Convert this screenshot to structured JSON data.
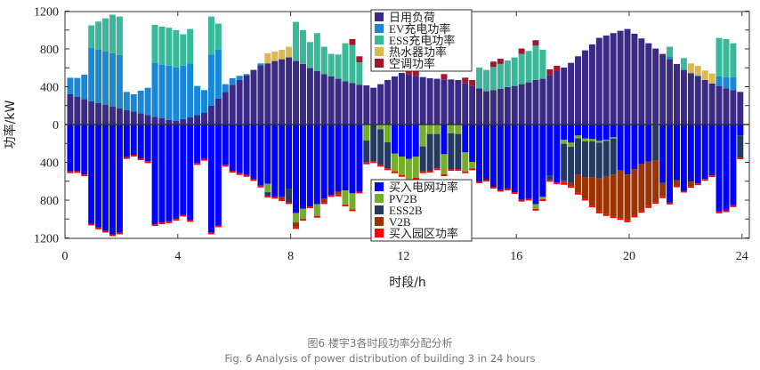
{
  "chart_data": {
    "type": "bar",
    "stacked": true,
    "xlabel": "时段/h",
    "ylabel": "功率/kW",
    "xlim": [
      0,
      24
    ],
    "ylim": [
      -1200,
      1200
    ],
    "x_ticks": [
      "0",
      "4",
      "8",
      "12",
      "16",
      "20",
      "24"
    ],
    "y_ticks": [
      "1200",
      "800",
      "400",
      "0",
      "400",
      "800",
      "1200"
    ],
    "grid": false,
    "interval_hours": 0.25,
    "legend_positive": "top-center",
    "legend_negative": "bottom-center",
    "positive_series": [
      {
        "name": "日用负荷",
        "color": "#3a2a84",
        "values": [
          320,
          295,
          270,
          245,
          226,
          207,
          188,
          170,
          151,
          138,
          119,
          100,
          82,
          69,
          50,
          38,
          57,
          75,
          100,
          126,
          201,
          276,
          345,
          421,
          471,
          521,
          578,
          628,
          647,
          672,
          691,
          710,
          672,
          641,
          597,
          565,
          534,
          509,
          484,
          458,
          440,
          421,
          414,
          389,
          427,
          471,
          509,
          546,
          528,
          515,
          502,
          490,
          484,
          477,
          477,
          471,
          440,
          408,
          383,
          352,
          364,
          377,
          396,
          408,
          427,
          446,
          471,
          484,
          521,
          565,
          603,
          653,
          722,
          785,
          848,
          917,
          942,
          967,
          992,
          1011,
          961,
          911,
          860,
          804,
          747,
          691,
          641,
          578,
          540,
          509,
          471,
          433,
          408,
          383,
          364,
          345
        ]
      },
      {
        "name": "EV充电功率",
        "color": "#1a86d6",
        "values": [
          175,
          198,
          258,
          565,
          565,
          565,
          566,
          565,
          194,
          182,
          239,
          289,
          571,
          565,
          572,
          565,
          565,
          572,
          308,
          238,
          540,
          515,
          82,
          69,
          44,
          13,
          0,
          19,
          0,
          0,
          0,
          0,
          0,
          0,
          0,
          0,
          0,
          0,
          0,
          0,
          0,
          0,
          0,
          0,
          0,
          0,
          0,
          0,
          0,
          0,
          0,
          0,
          0,
          0,
          0,
          0,
          0,
          0,
          0,
          0,
          0,
          0,
          0,
          0,
          0,
          0,
          0,
          0,
          0,
          0,
          0,
          0,
          0,
          0,
          0,
          0,
          0,
          0,
          0,
          0,
          0,
          0,
          0,
          0,
          0,
          31,
          0,
          0,
          6,
          12,
          0,
          0,
          101,
          119,
          138,
          0
        ]
      },
      {
        "name": "ESS充电功率",
        "color": "#3ab99a",
        "values": [
          0,
          0,
          0,
          239,
          299,
          352,
          408,
          408,
          0,
          0,
          0,
          0,
          402,
          402,
          402,
          396,
          333,
          364,
          0,
          0,
          402,
          277,
          0,
          0,
          0,
          0,
          0,
          0,
          0,
          0,
          0,
          0,
          414,
          358,
          276,
          402,
          289,
          238,
          257,
          402,
          402,
          238,
          0,
          0,
          0,
          0,
          0,
          0,
          0,
          0,
          0,
          0,
          0,
          0,
          0,
          0,
          0,
          0,
          220,
          226,
          245,
          264,
          282,
          302,
          320,
          333,
          364,
          307,
          0,
          0,
          0,
          0,
          0,
          0,
          0,
          0,
          0,
          0,
          0,
          0,
          0,
          0,
          0,
          0,
          0,
          101,
          0,
          125,
          0,
          0,
          0,
          0,
          408,
          402,
          358,
          0
        ]
      },
      {
        "name": "热水器功率",
        "color": "#ddb84c",
        "values": [
          0,
          0,
          0,
          0,
          0,
          0,
          0,
          0,
          0,
          0,
          0,
          0,
          0,
          0,
          0,
          0,
          0,
          0,
          0,
          0,
          0,
          0,
          0,
          0,
          0,
          0,
          0,
          0,
          107,
          100,
          100,
          113,
          0,
          0,
          0,
          0,
          0,
          0,
          0,
          0,
          0,
          0,
          0,
          0,
          0,
          0,
          0,
          0,
          0,
          0,
          0,
          0,
          0,
          0,
          0,
          0,
          0,
          0,
          0,
          0,
          0,
          0,
          0,
          0,
          0,
          0,
          0,
          0,
          0,
          0,
          0,
          0,
          0,
          0,
          0,
          0,
          0,
          0,
          0,
          0,
          0,
          0,
          0,
          0,
          0,
          0,
          0,
          0,
          101,
          101,
          101,
          107,
          0,
          0,
          0,
          0
        ]
      },
      {
        "name": "空调功率",
        "color": "#a3162e",
        "values": [
          0,
          0,
          0,
          0,
          0,
          0,
          0,
          0,
          0,
          0,
          0,
          0,
          0,
          0,
          0,
          0,
          0,
          0,
          0,
          0,
          0,
          0,
          0,
          0,
          0,
          0,
          0,
          0,
          0,
          0,
          0,
          0,
          0,
          0,
          0,
          0,
          0,
          0,
          0,
          0,
          62,
          63,
          0,
          0,
          0,
          0,
          0,
          0,
          56,
          50,
          0,
          0,
          0,
          57,
          0,
          0,
          56,
          63,
          0,
          0,
          57,
          56,
          0,
          0,
          57,
          0,
          57,
          0,
          63,
          57,
          0,
          0,
          0,
          0,
          0,
          0,
          0,
          0,
          0,
          0,
          0,
          0,
          0,
          0,
          0,
          0,
          0,
          0,
          0,
          0,
          0,
          0,
          0,
          0,
          0,
          0
        ]
      }
    ],
    "negative_series": [
      {
        "name": "买入电网功率",
        "color": "#0000ff",
        "values": [
          496,
          493,
          528,
          1049,
          1090,
          1124,
          1162,
          1143,
          345,
          320,
          358,
          389,
          1055,
          1036,
          1024,
          999,
          955,
          1011,
          408,
          364,
          1143,
          1068,
          427,
          490,
          515,
          534,
          578,
          647,
          628,
          766,
          766,
          678,
          936,
          892,
          867,
          842,
          785,
          747,
          710,
          697,
          728,
          710,
          0,
          0,
          0,
          0,
          308,
          339,
          364,
          339,
          0,
          0,
          0,
          314,
          0,
          0,
          295,
          396,
          603,
          584,
          659,
          691,
          678,
          716,
          797,
          785,
          842,
          766,
          537,
          613,
          160,
          192,
          116,
          148,
          154,
          173,
          160,
          135,
          487,
          528,
          471,
          418,
          393,
          0,
          619,
          827,
          588,
          701,
          603,
          623,
          575,
          537,
          921,
          908,
          855,
          116
        ]
      },
      {
        "name": "PV2B",
        "color": "#76ad2d",
        "values": [
          0,
          0,
          0,
          0,
          0,
          0,
          0,
          0,
          0,
          0,
          0,
          0,
          0,
          0,
          0,
          0,
          0,
          0,
          0,
          0,
          0,
          0,
          0,
          0,
          0,
          0,
          0,
          0,
          88,
          0,
          0,
          0,
          100,
          107,
          0,
          125,
          0,
          0,
          0,
          151,
          170,
          0,
          170,
          0,
          50,
          188,
          188,
          195,
          220,
          226,
          232,
          100,
          100,
          213,
          94,
          100,
          201,
          69,
          0,
          0,
          0,
          0,
          0,
          0,
          0,
          0,
          50,
          25,
          0,
          0,
          44,
          44,
          31,
          31,
          25,
          19,
          13,
          13,
          0,
          0,
          0,
          0,
          0,
          0,
          0,
          0,
          0,
          0,
          0,
          0,
          0,
          0,
          0,
          0,
          0,
          0
        ]
      },
      {
        "name": "ESS2B",
        "color": "#24395e",
        "values": [
          0,
          0,
          0,
          0,
          0,
          0,
          0,
          0,
          0,
          0,
          0,
          0,
          0,
          0,
          0,
          0,
          0,
          0,
          0,
          0,
          0,
          0,
          0,
          0,
          0,
          0,
          0,
          0,
          38,
          0,
          0,
          145,
          0,
          0,
          0,
          0,
          0,
          0,
          0,
          0,
          0,
          0,
          232,
          389,
          377,
          276,
          0,
          0,
          0,
          0,
          264,
          390,
          364,
          0,
          377,
          371,
          0,
          0,
          0,
          0,
          0,
          0,
          0,
          0,
          0,
          0,
          0,
          0,
          50,
          0,
          390,
          384,
          387,
          380,
          377,
          380,
          380,
          380,
          0,
          0,
          0,
          0,
          0,
          380,
          0,
          0,
          0,
          0,
          0,
          0,
          0,
          0,
          0,
          0,
          0,
          233
        ]
      },
      {
        "name": "V2B",
        "color": "#9b3300",
        "values": [
          0,
          0,
          0,
          0,
          0,
          0,
          0,
          0,
          0,
          0,
          0,
          0,
          0,
          0,
          0,
          0,
          0,
          0,
          0,
          0,
          0,
          0,
          0,
          0,
          0,
          0,
          0,
          0,
          0,
          0,
          25,
          0,
          50,
          0,
          0,
          0,
          38,
          0,
          31,
          0,
          0,
          0,
          0,
          0,
          0,
          0,
          0,
          0,
          0,
          0,
          0,
          0,
          0,
          0,
          0,
          0,
          0,
          0,
          0,
          0,
          0,
          0,
          0,
          0,
          0,
          0,
          0,
          0,
          0,
          0,
          25,
          31,
          189,
          226,
          302,
          349,
          396,
          443,
          503,
          487,
          493,
          497,
          471,
          440,
          141,
          0,
          57,
          0,
          47,
          0,
          0,
          0,
          0,
          0,
          0,
          0
        ]
      },
      {
        "name": "买入园区功率",
        "color": "#ff0000",
        "values": [
          12,
          12,
          12,
          12,
          12,
          12,
          12,
          12,
          12,
          12,
          12,
          12,
          12,
          12,
          12,
          12,
          12,
          12,
          12,
          12,
          12,
          12,
          12,
          12,
          12,
          12,
          12,
          12,
          12,
          12,
          12,
          12,
          12,
          12,
          12,
          12,
          12,
          12,
          12,
          12,
          12,
          12,
          12,
          12,
          12,
          12,
          12,
          12,
          12,
          12,
          12,
          12,
          12,
          12,
          12,
          12,
          12,
          12,
          12,
          12,
          12,
          12,
          12,
          12,
          12,
          12,
          12,
          12,
          12,
          12,
          12,
          12,
          12,
          12,
          12,
          12,
          12,
          12,
          12,
          12,
          12,
          12,
          12,
          12,
          12,
          12,
          12,
          12,
          12,
          12,
          12,
          12,
          12,
          12,
          12,
          12
        ]
      }
    ]
  },
  "caption": {
    "zh": "图6 楼宇3各时段功率分配分析",
    "en": "Fig. 6 Analysis of power distribution of building 3 in 24 hours"
  }
}
